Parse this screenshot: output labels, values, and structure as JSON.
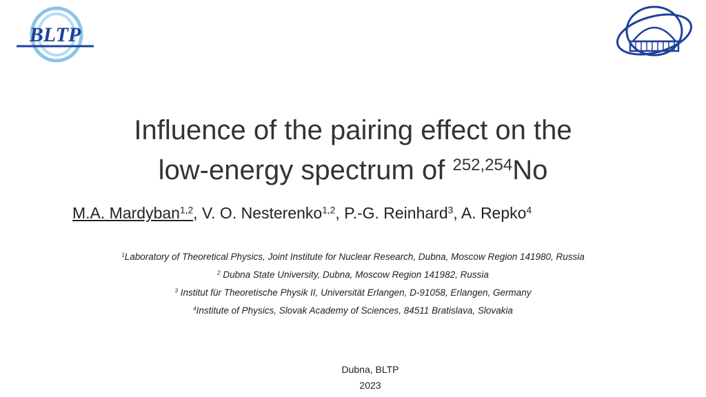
{
  "logos": {
    "left": {
      "text": "BLTP"
    }
  },
  "title": {
    "line1": "Influence of the pairing effect on the",
    "line2": "low-energy spectrum of ",
    "superscript": "252,254",
    "nucleus": "No"
  },
  "authors": {
    "separator": ", ",
    "list": [
      {
        "name": "M.A. Mardyban",
        "sup": "1,2"
      },
      {
        "name": "V. O. Nesterenko",
        "sup": "1,2"
      },
      {
        "name": "P.-G. Reinhard",
        "sup": "3"
      },
      {
        "name": "A. Repko",
        "sup": "4"
      }
    ]
  },
  "affiliations": [
    {
      "sup": "1",
      "text": "Laboratory of Theoretical Physics, Joint Institute for Nuclear Research, Dubna, Moscow Region 141980, Russia"
    },
    {
      "sup": "2",
      "text": " Dubna State University, Dubna, Moscow Region 141982, Russia"
    },
    {
      "sup": "3",
      "text": " Institut für Theoretische Physik II, Universität Erlangen, D-91058, Erlangen, Germany"
    },
    {
      "sup": "4",
      "text": "Institute of Physics, Slovak Academy of Sciences, 84511 Bratislava, Slovakia"
    }
  ],
  "footer": {
    "place": "Dubna, BLTP",
    "year": "2023"
  }
}
